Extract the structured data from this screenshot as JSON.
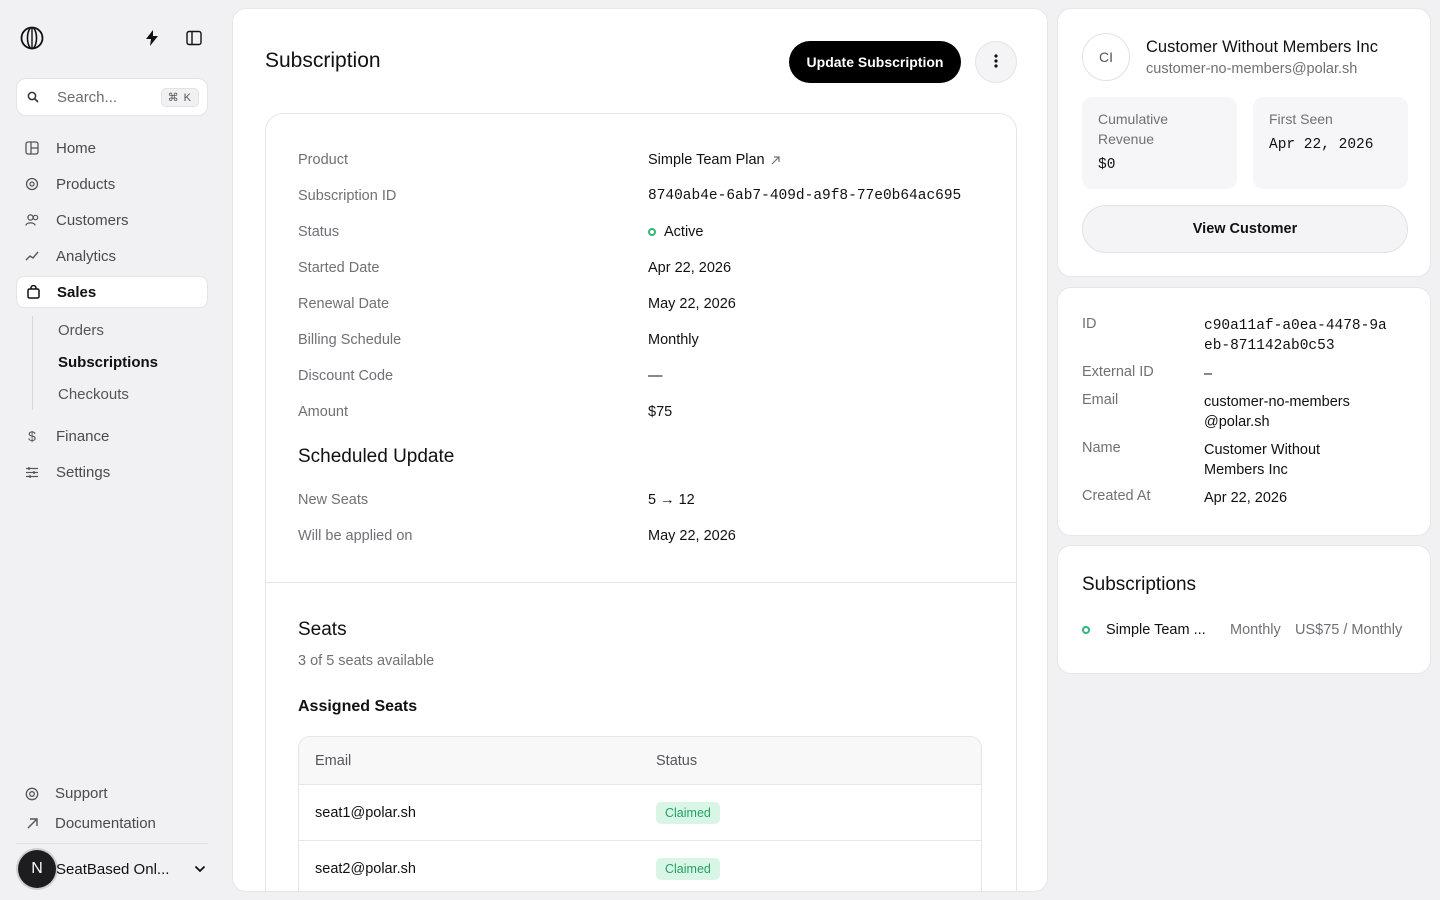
{
  "sidebar": {
    "search": {
      "placeholder": "Search...",
      "shortcut": "⌘ K"
    },
    "nav": [
      {
        "label": "Home",
        "icon": "home-icon"
      },
      {
        "label": "Products",
        "icon": "products-icon"
      },
      {
        "label": "Customers",
        "icon": "customers-icon"
      },
      {
        "label": "Analytics",
        "icon": "analytics-icon"
      },
      {
        "label": "Sales",
        "icon": "shopping-bag-icon",
        "active": true
      }
    ],
    "sales_subnav": [
      "Orders",
      "Subscriptions",
      "Checkouts"
    ],
    "nav_bottom": [
      {
        "label": "Finance",
        "icon": "dollar-icon"
      },
      {
        "label": "Settings",
        "icon": "sliders-icon"
      }
    ],
    "support": "Support",
    "documentation": "Documentation",
    "org": {
      "initial": "N",
      "name": "SeatBased Onl..."
    }
  },
  "main": {
    "title": "Subscription",
    "update_button": "Update Subscription",
    "details": {
      "product_label": "Product",
      "product_value": "Simple Team Plan",
      "subscription_id_label": "Subscription ID",
      "subscription_id_value": "8740ab4e-6ab7-409d-a9f8-77e0b64ac695",
      "status_label": "Status",
      "status_value": "Active",
      "started_label": "Started Date",
      "started_value": "Apr 22, 2026",
      "renewal_label": "Renewal Date",
      "renewal_value": "May 22, 2026",
      "billing_label": "Billing Schedule",
      "billing_value": "Monthly",
      "discount_label": "Discount Code",
      "discount_value": "—",
      "amount_label": "Amount",
      "amount_value": "$75"
    },
    "scheduled": {
      "title": "Scheduled Update",
      "new_seats_label": "New Seats",
      "new_seats_value": "5 → 12",
      "applied_label": "Will be applied on",
      "applied_value": "May 22, 2026"
    },
    "seats": {
      "title": "Seats",
      "subtitle": "3 of 5 seats available",
      "assigned_title": "Assigned Seats",
      "columns": [
        "Email",
        "Status"
      ],
      "rows": [
        {
          "email": "seat1@polar.sh",
          "status": "Claimed"
        },
        {
          "email": "seat2@polar.sh",
          "status": "Claimed"
        }
      ]
    }
  },
  "customer": {
    "initials": "CI",
    "name": "Customer Without Members Inc",
    "email": "customer-no-members@polar.sh",
    "revenue_label": "Cumulative Revenue",
    "revenue_value": "$0",
    "first_seen_label": "First Seen",
    "first_seen_value": "Apr 22, 2026",
    "view_button": "View Customer"
  },
  "customer_details": {
    "id_label": "ID",
    "id_value": "c90a11af-a0ea-4478-9aeb-871142ab0c53",
    "external_id_label": "External ID",
    "external_id_value": "–",
    "email_label": "Email",
    "email_value": "customer-no-members@polar.sh",
    "name_label": "Name",
    "name_value": "Customer Without Members Inc",
    "created_label": "Created At",
    "created_value": "Apr 22, 2026"
  },
  "customer_subscriptions": {
    "title": "Subscriptions",
    "items": [
      {
        "name": "Simple Team ...",
        "cycle": "Monthly",
        "price": "US$75 / Monthly"
      }
    ]
  },
  "colors": {
    "accent": "#000000",
    "active_green": "#2fb67a",
    "badge_bg": "#d9f5e6",
    "badge_text": "#21a366"
  }
}
